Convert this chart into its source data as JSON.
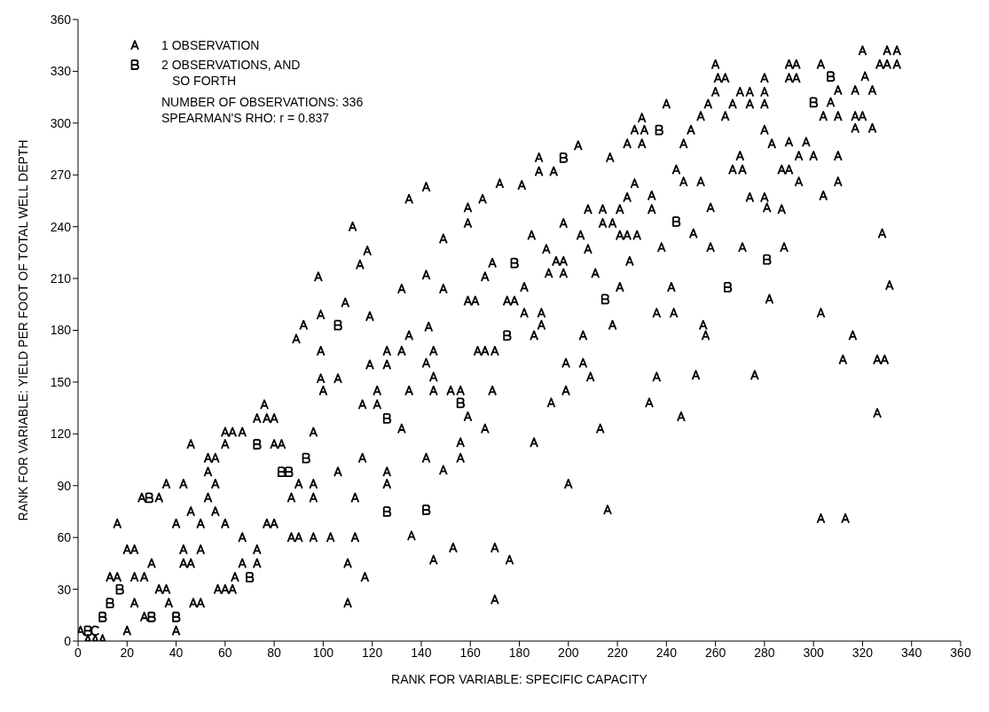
{
  "chart_data": {
    "type": "scatter",
    "xlabel": "RANK FOR VARIABLE: SPECIFIC CAPACITY",
    "ylabel": "RANK FOR VARIABLE: YIELD PER FOOT OF TOTAL WELL DEPTH",
    "xlim": [
      0,
      360
    ],
    "xticks": [
      0,
      20,
      40,
      60,
      80,
      100,
      120,
      140,
      160,
      180,
      200,
      220,
      240,
      260,
      280,
      300,
      320,
      340,
      360
    ],
    "ylim": [
      0,
      360
    ],
    "yticks": [
      0,
      30,
      60,
      90,
      120,
      150,
      180,
      210,
      240,
      270,
      300,
      330,
      360
    ],
    "legend": "top left",
    "annotations": [
      "NUMBER OF OBSERVATIONS: 336",
      "SPEARMAN'S RHO: r = 0.837"
    ],
    "series": [
      {
        "name": "1 OBSERVATION",
        "color": "#000000",
        "x": [
          1,
          4,
          7,
          10,
          20,
          40,
          27,
          23,
          37,
          47,
          50,
          110,
          33,
          36,
          57,
          60,
          63,
          13,
          16,
          23,
          27,
          64,
          117,
          30,
          43,
          46,
          67,
          73,
          110,
          20,
          23,
          43,
          50,
          73,
          67,
          87,
          90,
          96,
          103,
          113,
          16,
          40,
          50,
          60,
          77,
          80,
          46,
          56,
          26,
          33,
          53,
          87,
          96,
          113,
          36,
          43,
          56,
          90,
          96,
          126,
          53,
          106,
          126,
          53,
          56,
          116,
          46,
          60,
          80,
          83,
          60,
          63,
          67,
          96,
          73,
          77,
          80,
          76,
          116,
          122,
          100,
          122,
          99,
          106,
          119,
          126,
          99,
          126,
          89,
          92,
          142,
          172,
          135,
          165,
          159,
          159,
          112,
          149,
          118,
          115,
          169,
          98,
          142,
          166,
          132,
          149,
          159,
          162,
          109,
          99,
          119,
          143,
          320,
          330,
          334,
          260,
          290,
          293,
          303,
          327,
          330,
          334,
          261,
          264,
          280,
          290,
          293,
          321,
          260,
          270,
          274,
          280,
          310,
          317,
          324,
          240,
          257,
          267,
          274,
          280,
          307,
          230,
          254,
          264,
          304,
          310,
          317,
          320,
          227,
          231,
          250,
          280,
          317,
          324,
          204,
          224,
          230,
          247,
          283,
          290,
          297,
          188,
          217,
          270,
          294,
          300,
          310,
          188,
          194,
          244,
          267,
          271,
          287,
          290,
          181,
          227,
          247,
          254,
          294,
          310,
          224,
          234,
          274,
          280,
          304,
          208,
          214,
          221,
          234,
          258,
          281,
          287,
          198,
          214,
          218,
          328,
          185,
          205,
          221,
          224,
          228,
          251,
          191,
          208,
          238,
          258,
          271,
          288,
          195,
          198,
          225,
          192,
          198,
          211,
          182,
          221,
          242,
          331,
          175,
          178,
          282,
          182,
          189,
          236,
          243,
          303,
          189,
          218,
          255,
          135,
          186,
          206,
          132,
          145,
          163,
          166,
          170,
          142,
          199,
          206,
          145,
          209,
          236,
          135,
          145,
          152,
          156,
          169,
          199,
          193,
          233,
          159,
          246,
          132,
          166,
          213,
          156,
          186,
          142,
          156,
          149,
          200,
          216,
          136,
          153,
          170,
          145,
          176,
          170,
          256,
          316,
          312,
          326,
          329,
          252,
          276,
          326,
          303,
          313
        ],
        "values": [
          6,
          1,
          1,
          1,
          6,
          6,
          14,
          22,
          22,
          22,
          22,
          22,
          30,
          30,
          30,
          30,
          30,
          37,
          37,
          37,
          37,
          37,
          37,
          45,
          45,
          45,
          45,
          45,
          45,
          53,
          53,
          53,
          53,
          53,
          60,
          60,
          60,
          60,
          60,
          60,
          68,
          68,
          68,
          68,
          68,
          68,
          75,
          75,
          83,
          83,
          83,
          83,
          83,
          83,
          91,
          91,
          91,
          91,
          91,
          91,
          98,
          98,
          98,
          106,
          106,
          106,
          114,
          114,
          114,
          114,
          121,
          121,
          121,
          121,
          129,
          129,
          129,
          137,
          137,
          137,
          145,
          145,
          152,
          152,
          160,
          160,
          168,
          168,
          175,
          183,
          263,
          265,
          256,
          256,
          251,
          242,
          240,
          233,
          226,
          218,
          219,
          211,
          212,
          211,
          204,
          204,
          197,
          197,
          196,
          189,
          188,
          182,
          342,
          342,
          342,
          334,
          334,
          334,
          334,
          334,
          334,
          334,
          326,
          326,
          326,
          326,
          326,
          327,
          318,
          318,
          318,
          318,
          319,
          319,
          319,
          311,
          311,
          311,
          311,
          311,
          312,
          303,
          304,
          304,
          304,
          304,
          304,
          304,
          296,
          296,
          296,
          296,
          297,
          297,
          287,
          288,
          288,
          288,
          288,
          289,
          289,
          280,
          280,
          281,
          281,
          281,
          281,
          272,
          272,
          273,
          273,
          273,
          273,
          273,
          264,
          265,
          266,
          266,
          266,
          266,
          257,
          258,
          257,
          257,
          258,
          250,
          250,
          250,
          250,
          251,
          251,
          250,
          242,
          242,
          242,
          236,
          235,
          235,
          235,
          235,
          235,
          236,
          227,
          227,
          228,
          228,
          228,
          228,
          220,
          220,
          220,
          213,
          213,
          213,
          205,
          205,
          205,
          206,
          197,
          197,
          198,
          190,
          190,
          190,
          190,
          190,
          183,
          183,
          183,
          177,
          177,
          177,
          168,
          168,
          168,
          168,
          168,
          161,
          161,
          161,
          153,
          153,
          153,
          145,
          145,
          145,
          145,
          145,
          145,
          138,
          138,
          130,
          130,
          123,
          123,
          123,
          115,
          115,
          106,
          106,
          99,
          91,
          76,
          61,
          54,
          54,
          47,
          47,
          24,
          177,
          177,
          163,
          163,
          163,
          154,
          154,
          132,
          71,
          71
        ]
      },
      {
        "name": "2 OBSERVATIONS, AND SO FORTH",
        "color": "#000000",
        "x": [
          4,
          10,
          30,
          40,
          13,
          17,
          70,
          126,
          29,
          83,
          86,
          93,
          73,
          126,
          106,
          178,
          307,
          300,
          237,
          198,
          244,
          281,
          265,
          215,
          175,
          156,
          142
        ],
        "values": [
          6,
          14,
          14,
          14,
          22,
          30,
          37,
          75,
          83,
          98,
          98,
          106,
          114,
          129,
          183,
          219,
          327,
          312,
          296,
          280,
          243,
          221,
          205,
          198,
          177,
          138,
          76
        ]
      },
      {
        "color": "#000000",
        "x": [
          7
        ],
        "values": [
          6
        ]
      }
    ]
  }
}
